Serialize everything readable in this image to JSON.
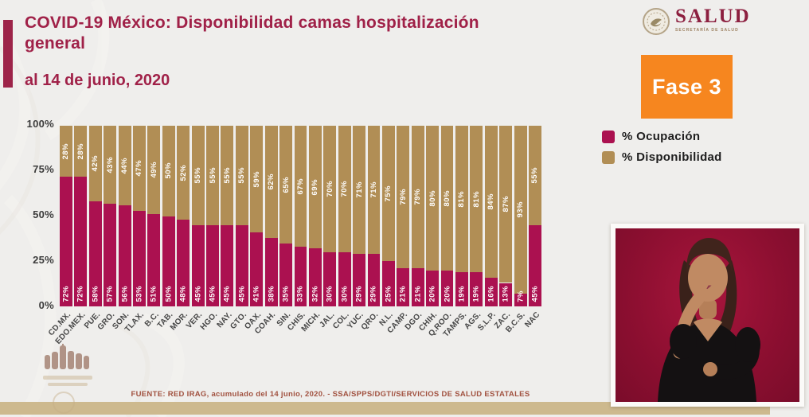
{
  "header": {
    "title": "COVID-19 México: Disponibilidad camas hospitalización general",
    "subtitle": "al 14 de junio, 2020"
  },
  "branding": {
    "logo_text": "SALUD",
    "logo_subtext": "SECRETARÍA DE SALUD",
    "phase_label": "Fase 3"
  },
  "legend": [
    {
      "label": "% Ocupación",
      "color": "#ab1150"
    },
    {
      "label": "% Disponibilidad",
      "color": "#b18e55"
    }
  ],
  "chart_data": {
    "type": "bar",
    "stacked": true,
    "title": "COVID-19 México: Disponibilidad camas hospitalización general",
    "categories": [
      "CD.MX.",
      "EDO.MEX.",
      "PUE.",
      "GRO.",
      "SON.",
      "TLAX.",
      "B.C.",
      "TAB.",
      "MOR.",
      "VER.",
      "HGO.",
      "NAY.",
      "GTO.",
      "OAX.",
      "COAH.",
      "SIN.",
      "CHIS.",
      "MICH.",
      "JAL.",
      "COL.",
      "YUC.",
      "QRO.",
      "N.L.",
      "CAMP.",
      "DGO.",
      "CHIH.",
      "Q.ROO.",
      "TAMPS.",
      "AGS.",
      "S.L.P.",
      "ZAC.",
      "B.C.S.",
      "NAC"
    ],
    "series": [
      {
        "name": "% Ocupación",
        "color": "#ab1150",
        "values": [
          72,
          72,
          58,
          57,
          56,
          53,
          51,
          50,
          48,
          45,
          45,
          45,
          45,
          41,
          38,
          35,
          33,
          32,
          30,
          30,
          29,
          29,
          25,
          21,
          21,
          20,
          20,
          19,
          19,
          16,
          13,
          7,
          45
        ]
      },
      {
        "name": "% Disponibilidad",
        "color": "#b18e55",
        "values": [
          28,
          28,
          42,
          43,
          44,
          47,
          49,
          50,
          52,
          55,
          55,
          55,
          55,
          59,
          62,
          65,
          67,
          69,
          70,
          70,
          71,
          71,
          75,
          79,
          79,
          80,
          80,
          81,
          81,
          84,
          87,
          93,
          55
        ]
      }
    ],
    "y_ticks": [
      "100%",
      "75%",
      "50%",
      "25%",
      "0%"
    ],
    "ylim": [
      0,
      100
    ],
    "grid": false,
    "value_label_unit": "%",
    "legend_position": "right"
  },
  "footer": {
    "source": "FUENTE: RED IRAG, acumulado del 14 junio, 2020. -  SSA/SPPS/DGTI/SERVICIOS DE SALUD ESTATALES"
  },
  "colors": {
    "accent_maroon": "#9d2449",
    "phase_orange": "#f6861f",
    "bottom_band_tan": "#cdb98e",
    "video_background": "#8e0f31"
  }
}
